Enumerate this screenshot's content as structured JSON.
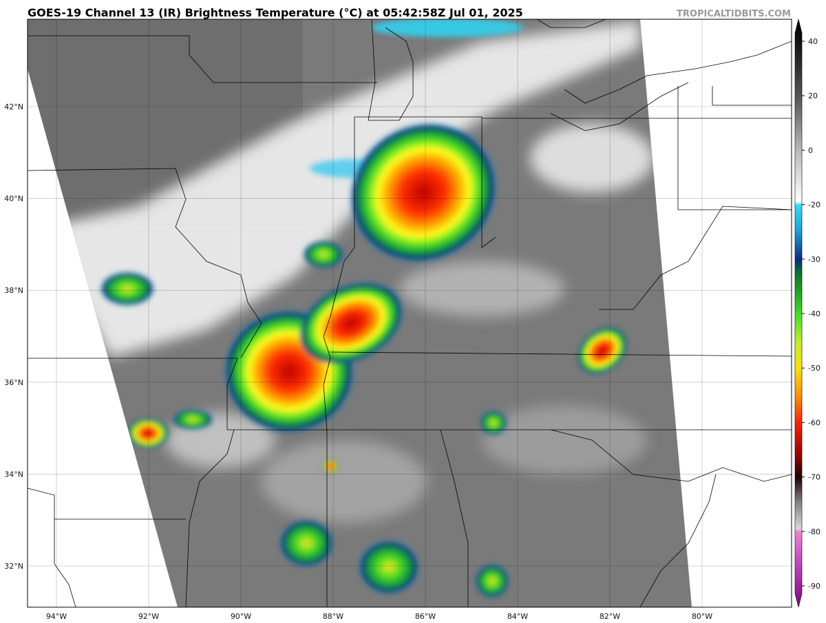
{
  "header": {
    "title": "GOES-19 Channel 13 (IR) Brightness Temperature (°C) at 05:42:58Z Jul 01, 2025",
    "source": "TROPICALTIDBITS.COM"
  },
  "map": {
    "latitudes": [
      {
        "value": 42,
        "label": "42°N"
      },
      {
        "value": 40,
        "label": "40°N"
      },
      {
        "value": 38,
        "label": "38°N"
      },
      {
        "value": 36,
        "label": "36°N"
      },
      {
        "value": 34,
        "label": "34°N"
      },
      {
        "value": 32,
        "label": "32°N"
      }
    ],
    "longitudes": [
      {
        "value": -94,
        "label": "94°W"
      },
      {
        "value": -92,
        "label": "92°W"
      },
      {
        "value": -90,
        "label": "90°W"
      },
      {
        "value": -88,
        "label": "88°W"
      },
      {
        "value": -86,
        "label": "86°W"
      },
      {
        "value": -84,
        "label": "84°W"
      },
      {
        "value": -82,
        "label": "82°W"
      },
      {
        "value": -80,
        "label": "80°W"
      }
    ]
  },
  "colorbar": {
    "ticks": [
      40,
      20,
      0,
      -20,
      -30,
      -40,
      -50,
      -60,
      -70,
      -80,
      -90
    ]
  }
}
